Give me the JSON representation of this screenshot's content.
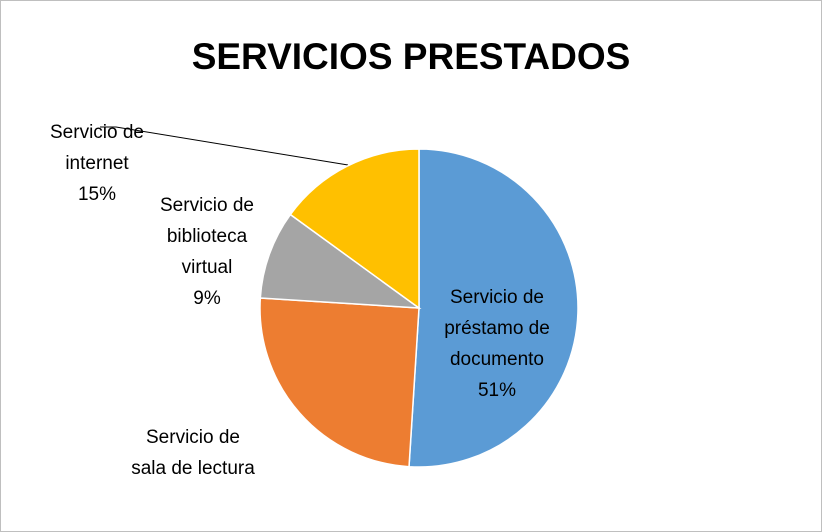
{
  "chart_data": {
    "type": "pie",
    "title": "SERVICIOS PRESTADOS",
    "categories": [
      "Servicio de préstamo de documento",
      "Servicio de sala de lectura",
      "Servicio de biblioteca virtual",
      "Servicio de internet"
    ],
    "values": [
      51,
      25,
      9,
      15
    ],
    "value_labels": [
      "51%",
      null,
      "9%",
      "15%"
    ],
    "colors": [
      "#5b9bd5",
      "#ed7d31",
      "#a5a5a5",
      "#ffc000"
    ]
  }
}
